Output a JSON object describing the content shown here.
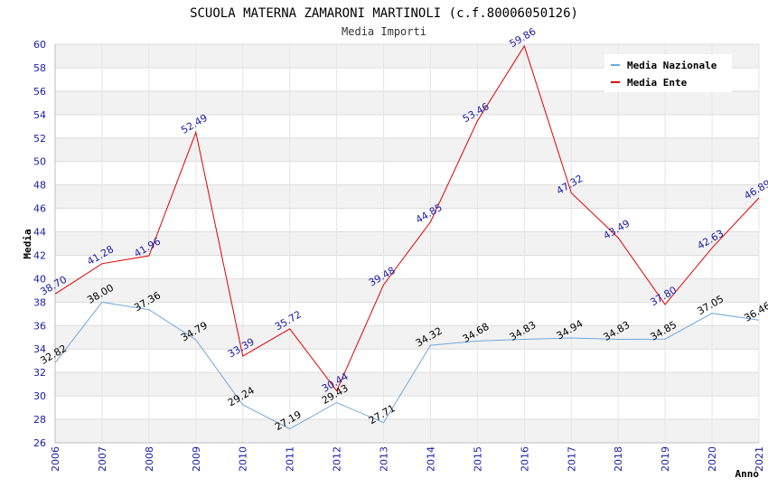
{
  "chart_data": {
    "type": "line",
    "title": "SCUOLA MATERNA ZAMARONI MARTINOLI (c.f.80006050126)",
    "subtitle": "Media Importi",
    "xlabel": "Anno",
    "ylabel": "Media",
    "x": [
      "2006",
      "2007",
      "2008",
      "2009",
      "2010",
      "2011",
      "2012",
      "2013",
      "2014",
      "2015",
      "2016",
      "2017",
      "2018",
      "2019",
      "2020",
      "2021"
    ],
    "ylim": [
      26,
      60
    ],
    "ytick_step": 2,
    "grid": true,
    "legend_position": "top-right",
    "series": [
      {
        "name": "Media Nazionale",
        "color": "#6fa8dc",
        "values": [
          32.82,
          38.0,
          37.36,
          34.79,
          29.24,
          27.19,
          29.43,
          27.71,
          34.32,
          34.68,
          34.83,
          34.94,
          34.83,
          34.85,
          37.05,
          36.46
        ],
        "labels": [
          "32.82",
          "38.00",
          "37.36",
          "34.79",
          "29.24",
          "27.19",
          "29.43",
          "27.71",
          "34.32",
          "34.68",
          "34.83",
          "34.94",
          "34.83",
          "34.85",
          "37.05",
          "36.46"
        ]
      },
      {
        "name": "Media Ente",
        "color": "#e00000",
        "values": [
          38.7,
          41.28,
          41.96,
          52.49,
          33.39,
          35.72,
          30.44,
          39.48,
          44.85,
          53.46,
          59.86,
          47.32,
          43.49,
          37.8,
          42.63,
          46.89
        ],
        "labels": [
          "38.70",
          "41.28",
          "41.96",
          "52.49",
          "33.39",
          "35.72",
          "30.44",
          "39.48",
          "44.85",
          "53.46",
          "59.86",
          "47.32",
          "43.49",
          "37.80",
          "42.63",
          "46.89"
        ]
      }
    ]
  }
}
